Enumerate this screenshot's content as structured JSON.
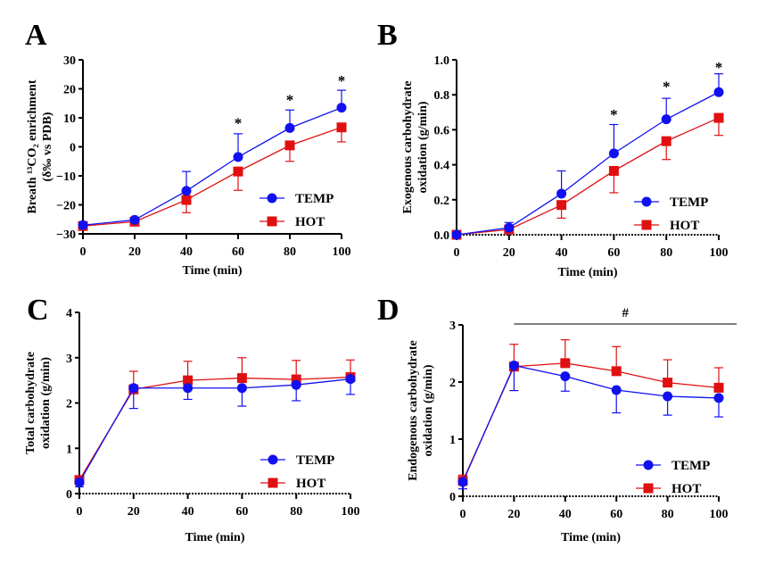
{
  "colors": {
    "temp": "#1010f0",
    "hot": "#e01010",
    "axis": "#000000"
  },
  "chart_data": [
    {
      "panel": "A",
      "type": "line",
      "ylabel": [
        "Breath ¹³CO₂ enrichment",
        "(δ‰ vs PDB)"
      ],
      "xlabel": "Time (min)",
      "x": [
        0,
        20,
        40,
        60,
        80,
        100
      ],
      "xticks": [
        "0",
        "20",
        "40",
        "60",
        "80",
        "100"
      ],
      "ylim": [
        -30,
        30
      ],
      "yticks": [
        -30,
        -20,
        -10,
        0,
        10,
        20,
        30
      ],
      "yticklabels": [
        "−30",
        "−20",
        "−10",
        "0",
        "10",
        "20",
        "30"
      ],
      "zero_line": false,
      "series": [
        {
          "name": "TEMP",
          "marker": "circle",
          "values": [
            -27,
            -25.2,
            -15.2,
            -3.5,
            6.5,
            13.5
          ],
          "error": [
            0,
            0.5,
            6.7,
            8,
            6.2,
            6
          ],
          "error_dir": "up"
        },
        {
          "name": "HOT",
          "marker": "square",
          "values": [
            -27.3,
            -25.8,
            -18.3,
            -8.5,
            0.5,
            6.7
          ],
          "error": [
            0,
            0.5,
            4.4,
            6.5,
            5.5,
            5
          ],
          "error_dir": "down"
        }
      ],
      "annotations": [
        {
          "text": "*",
          "x": 60,
          "y": 9
        },
        {
          "text": "*",
          "x": 80,
          "y": 17
        },
        {
          "text": "*",
          "x": 100,
          "y": 23.5
        }
      ]
    },
    {
      "panel": "B",
      "type": "line",
      "ylabel": [
        "Exogenous carbohydrate",
        "oxidation (g/min)"
      ],
      "xlabel": "Time (min)",
      "x": [
        0,
        20,
        40,
        60,
        80,
        100
      ],
      "xticks": [
        "0",
        "20",
        "40",
        "60",
        "80",
        "100"
      ],
      "ylim": [
        0,
        1.0
      ],
      "yticks": [
        0,
        0.2,
        0.4,
        0.6,
        0.8,
        1.0
      ],
      "yticklabels": [
        "0.0",
        "0.2",
        "0.4",
        "0.6",
        "0.8",
        "1.0"
      ],
      "zero_line": true,
      "series": [
        {
          "name": "TEMP",
          "marker": "circle",
          "values": [
            0,
            0.04,
            0.235,
            0.465,
            0.66,
            0.815
          ],
          "error": [
            0,
            0.03,
            0.13,
            0.165,
            0.12,
            0.105
          ],
          "error_dir": "up"
        },
        {
          "name": "HOT",
          "marker": "square",
          "values": [
            0,
            0.03,
            0.17,
            0.365,
            0.535,
            0.668
          ],
          "error": [
            0,
            0.01,
            0.075,
            0.125,
            0.105,
            0.1
          ],
          "error_dir": "down"
        }
      ],
      "annotations": [
        {
          "text": "*",
          "x": 60,
          "y": 0.7
        },
        {
          "text": "*",
          "x": 80,
          "y": 0.86
        },
        {
          "text": "*",
          "x": 100,
          "y": 0.97
        }
      ]
    },
    {
      "panel": "C",
      "type": "line",
      "ylabel": [
        "Total carbohydrate",
        "oxidation (g/min)"
      ],
      "xlabel": "Time (min)",
      "x": [
        0,
        20,
        40,
        60,
        80,
        100
      ],
      "xticks": [
        "0",
        "20",
        "40",
        "60",
        "80",
        "100"
      ],
      "ylim": [
        0,
        4
      ],
      "yticks": [
        0,
        1,
        2,
        3,
        4
      ],
      "yticklabels": [
        "0",
        "1",
        "2",
        "3",
        "4"
      ],
      "zero_line": true,
      "series": [
        {
          "name": "TEMP",
          "marker": "circle",
          "values": [
            0.25,
            2.33,
            2.33,
            2.33,
            2.4,
            2.53
          ],
          "error": [
            0.1,
            0.45,
            0.25,
            0.4,
            0.35,
            0.34
          ],
          "error_dir": "down"
        },
        {
          "name": "HOT",
          "marker": "square",
          "values": [
            0.3,
            2.3,
            2.5,
            2.55,
            2.52,
            2.57
          ],
          "error": [
            0.05,
            0.4,
            0.42,
            0.45,
            0.42,
            0.38
          ],
          "error_dir": "up"
        }
      ],
      "annotations": []
    },
    {
      "panel": "D",
      "type": "line",
      "ylabel": [
        "Endogenous carbohydrate",
        "oxidation (g/min)"
      ],
      "xlabel": "Time (min)",
      "x": [
        0,
        20,
        40,
        60,
        80,
        100
      ],
      "xticks": [
        "0",
        "20",
        "40",
        "60",
        "80",
        "100"
      ],
      "ylim": [
        0,
        3
      ],
      "yticks": [
        0,
        1,
        2,
        3
      ],
      "yticklabels": [
        "0",
        "1",
        "2",
        "3"
      ],
      "zero_line": true,
      "series": [
        {
          "name": "TEMP",
          "marker": "circle",
          "values": [
            0.25,
            2.29,
            2.1,
            1.86,
            1.75,
            1.72
          ],
          "error": [
            0.12,
            0.44,
            0.26,
            0.4,
            0.33,
            0.33
          ],
          "error_dir": "down"
        },
        {
          "name": "HOT",
          "marker": "square",
          "values": [
            0.27,
            2.27,
            2.33,
            2.19,
            1.99,
            1.9
          ],
          "error": [
            0.1,
            0.39,
            0.41,
            0.43,
            0.4,
            0.35
          ],
          "error_dir": "up"
        }
      ],
      "annotations": [],
      "bracket": {
        "text": "#",
        "x_from": 20,
        "x_to": 107
      }
    }
  ]
}
